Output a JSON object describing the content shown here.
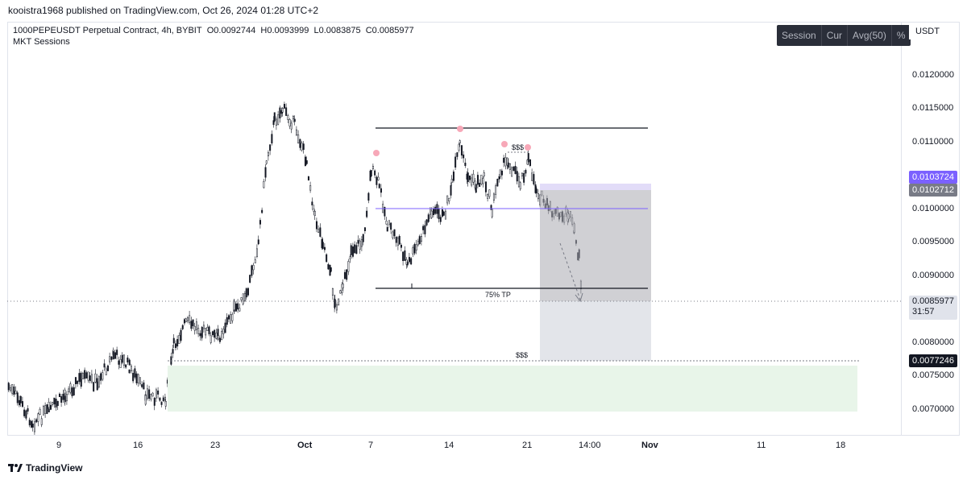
{
  "publisher": {
    "text": "kooistra1968 published on TradingView.com, Oct 26, 2024 01:28 UTC+2"
  },
  "legend": {
    "symbol": "1000PEPEUSDT Perpetual Contract, 4h, BYBIT",
    "open": "O0.0092744",
    "high": "H0.0093999",
    "low": "L0.0083875",
    "close": "C0.0085977",
    "indicator": "MKT Sessions"
  },
  "toolbar": {
    "session": "Session",
    "cur": "Cur",
    "avg": "Avg(50)",
    "pct": "%"
  },
  "currency": "USDT",
  "price_ticks": [
    "0.0120000",
    "0.0115000",
    "0.0110000",
    "0.0100000",
    "0.0095000",
    "0.0090000",
    "0.0080000",
    "0.0075000",
    "0.0070000"
  ],
  "price_labels": {
    "upper": "0.0103724",
    "mid": "0.0102712",
    "last": "0.0085977",
    "countdown": "31:57",
    "lower": "0.0077246"
  },
  "time_ticks": [
    "9",
    "16",
    "23",
    "Oct",
    "7",
    "14",
    "21",
    "14:00",
    "Nov",
    "11",
    "18"
  ],
  "annotations": {
    "tp_label": "75% TP",
    "liq_top": "$$$",
    "liq_bottom": "$$$"
  },
  "footer": {
    "brand": "TradingView"
  },
  "colors": {
    "purple": "#7b61ff",
    "label_gray": "#787b86",
    "dark": "#131722",
    "pink": "#f7a8b8",
    "demand_zone": "#e8f5e9",
    "box_dark": "#a9aab0",
    "box_light": "#d1d4dc"
  }
}
